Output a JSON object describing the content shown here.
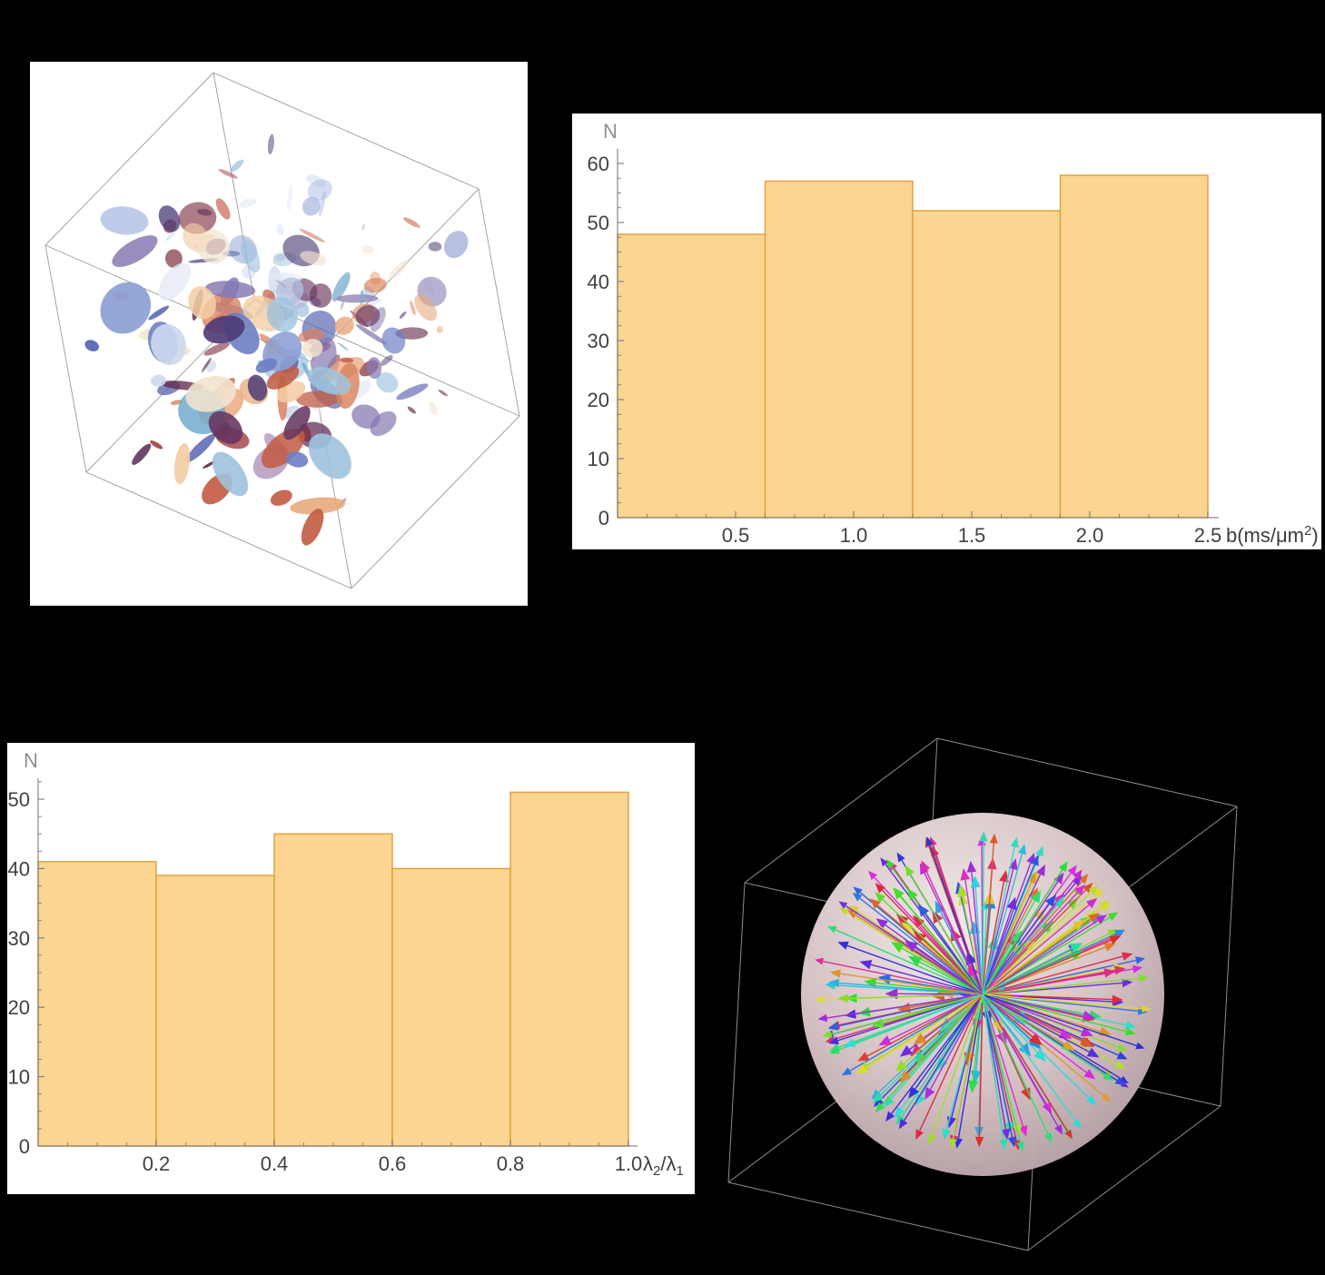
{
  "page": {
    "background": "#000000",
    "title": ""
  },
  "panels": [
    {
      "id": "tensor-glyph-panel",
      "name": "3D box of ellipsoid glyphs",
      "background": "#ffffff"
    },
    {
      "id": "b-histogram-panel",
      "name": "b-value histogram",
      "background": "#ffffff"
    },
    {
      "id": "lambda-histogram-panel",
      "name": "eigenvalue ratio histogram",
      "background": "#ffffff"
    },
    {
      "id": "direction-sphere-panel",
      "name": "3D sphere of direction arrows",
      "background": "#000000"
    }
  ],
  "chart_data": [
    {
      "id": "tensor-glyph-box",
      "type": "scatter",
      "subtype": "3d-wireframe-box-with-random-ellipsoid-glyphs",
      "title": "",
      "glyph_count": 170,
      "box_edge_color": "#9a9a9a",
      "palette": [
        "#5461ae",
        "#6d7ec2",
        "#8b9fd4",
        "#aebfe3",
        "#ccd8ee",
        "#e4eaf5",
        "#9fc3de",
        "#6fa8cc",
        "#f2e4cf",
        "#f3cda4",
        "#e8a87c",
        "#d97f5a",
        "#c25b43",
        "#a03c3e",
        "#7e2f3f",
        "#612b4e",
        "#4c3a74",
        "#8678b0",
        "#b497bd",
        "#64345f"
      ]
    },
    {
      "id": "b-value-histogram",
      "type": "bar",
      "title": "",
      "ylabel": "N",
      "xlabel": "b(ms/μm²)",
      "xlabel_rich": [
        {
          "t": "b(ms/"
        },
        {
          "t": "μm"
        },
        {
          "t": "2",
          "sup": true
        },
        {
          "t": ")"
        }
      ],
      "bin_edges": [
        0,
        0.625,
        1.25,
        1.875,
        2.5
      ],
      "values": [
        48,
        57,
        52,
        58
      ],
      "xlim": [
        0,
        2.5
      ],
      "ylim": [
        0,
        60
      ],
      "xticks": [
        0.5,
        1.0,
        1.5,
        2.0,
        2.5
      ],
      "xtick_labels": [
        "0.5",
        "1.0",
        "1.5",
        "2.0",
        "2.5"
      ],
      "yticks": [
        0,
        10,
        20,
        30,
        40,
        50,
        60
      ],
      "ytick_labels": [
        "0",
        "10",
        "20",
        "30",
        "40",
        "50",
        "60"
      ],
      "x_minor_step": 0.125,
      "y_minor_step": 2.5,
      "bar_fill": "#FBD289",
      "bar_edge": "#E09E3A",
      "axis_color": "#6f6f6f",
      "tick_label_color": "#414141",
      "ylabel_color": "#8f8f8f",
      "xlabel_color": "#3d3d3d",
      "grid": false,
      "legend": "none"
    },
    {
      "id": "eigenvalue-ratio-histogram",
      "type": "bar",
      "title": "",
      "ylabel": "N",
      "xlabel": "λ₂/λ₁",
      "xlabel_rich": [
        {
          "t": "λ"
        },
        {
          "t": "2",
          "sub": true
        },
        {
          "t": "/"
        },
        {
          "t": "λ"
        },
        {
          "t": "1",
          "sub": true
        }
      ],
      "bin_edges": [
        0,
        0.2,
        0.4,
        0.6,
        0.8,
        1.0
      ],
      "values": [
        41,
        39,
        45,
        40,
        51
      ],
      "xlim": [
        0,
        1.0
      ],
      "ylim": [
        0,
        50
      ],
      "xticks": [
        0.2,
        0.4,
        0.6,
        0.8,
        1.0
      ],
      "xtick_labels": [
        "0.2",
        "0.4",
        "0.6",
        "0.8",
        "1.0"
      ],
      "yticks": [
        0,
        10,
        20,
        30,
        40,
        50
      ],
      "ytick_labels": [
        "0",
        "10",
        "20",
        "30",
        "40",
        "50"
      ],
      "x_minor_step": 0.05,
      "y_minor_step": 2.5,
      "bar_fill": "#FBD289",
      "bar_edge": "#E09E3A",
      "axis_color": "#6f6f6f",
      "tick_label_color": "#414141",
      "ylabel_color": "#8f8f8f",
      "xlabel_color": "#3d3d3d",
      "grid": false,
      "legend": "none"
    },
    {
      "id": "direction-sphere",
      "type": "scatter",
      "subtype": "3d-sphere-with-radial-direction-arrows",
      "title": "",
      "arrow_count": 240,
      "box_edge_color": "#8d8d8d",
      "sphere_gradient": [
        "#f8f0ef",
        "#ddc9cb",
        "#b19ba1"
      ],
      "arrow_hue_model": "random-hue-hsl",
      "arrow_saturation": 0.72,
      "arrow_lightness": 0.52
    }
  ]
}
